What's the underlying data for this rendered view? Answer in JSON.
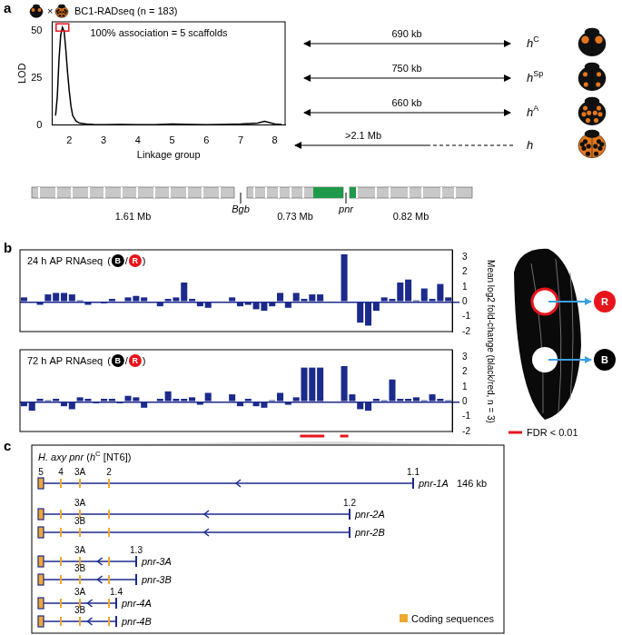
{
  "panel_labels": [
    "a",
    "b",
    "c"
  ],
  "chart_data": [
    {
      "type": "line",
      "title": "BC1-RADseq (n = 183)",
      "cross": "×",
      "annotation": "100% association = 5 scaffolds",
      "x_label": "Linkage group",
      "y_label": "LOD",
      "x": [
        1.6,
        1.65,
        1.7,
        1.75,
        1.8,
        1.85,
        1.9,
        1.95,
        2.0,
        2.05,
        2.1,
        2.2,
        2.3,
        2.5,
        2.7,
        3.0,
        3.5,
        4.0,
        4.5,
        5.0,
        5.5,
        6.0,
        6.5,
        7.0,
        7.5,
        7.7,
        8.0,
        8.2
      ],
      "values": [
        5,
        15,
        35,
        48,
        52,
        50,
        40,
        28,
        18,
        10,
        5,
        2,
        1,
        0.5,
        0.3,
        0.2,
        0.3,
        0.2,
        0.2,
        0.5,
        0.3,
        0.2,
        0.3,
        0.5,
        1,
        2,
        0.5,
        0.3
      ],
      "color": "#000000",
      "xlim": [
        1.5,
        8.3
      ],
      "xticks": [
        2,
        3,
        4,
        5,
        6,
        7,
        8
      ],
      "ylim": [
        0,
        55
      ],
      "yticks": [
        0,
        25,
        50
      ],
      "grid": false
    },
    {
      "type": "bar",
      "title": "24 h AP RNAseq",
      "categories": [
        null,
        null,
        null,
        null,
        null,
        null,
        null,
        null,
        null,
        null,
        null,
        null,
        null,
        null,
        null,
        null,
        null,
        null,
        null,
        null,
        null,
        null,
        null,
        null,
        null,
        null,
        null,
        null,
        null,
        null,
        null,
        null,
        null,
        null,
        null,
        null,
        null,
        null,
        null,
        null,
        null,
        null,
        null,
        null,
        null,
        null,
        null,
        null,
        null,
        null,
        null,
        null,
        null,
        null
      ],
      "values": [
        0.3,
        0,
        -0.2,
        0.5,
        0.6,
        0.6,
        0.5,
        0.1,
        -0.2,
        0,
        -0.1,
        0.2,
        0,
        0.3,
        0.4,
        0.3,
        0,
        -0.3,
        0.2,
        0.3,
        1.3,
        0.2,
        -0.3,
        -0.4,
        null,
        null,
        0.3,
        -0.3,
        -0.2,
        -0.5,
        -0.6,
        -0.3,
        0.6,
        -0.4,
        0.6,
        0.2,
        0.5,
        0.5,
        null,
        null,
        3.2,
        0,
        -1.4,
        -1.6,
        -0.6,
        0.3,
        0.2,
        1.3,
        1.5,
        0.1,
        0.9,
        0.2,
        1.2,
        0.3
      ],
      "color": "#1c2a8c",
      "ylim": [
        -2,
        3.5
      ],
      "yticks": [
        -2,
        -1,
        0,
        1,
        2,
        3
      ],
      "grid": false,
      "tick_labels": "y"
    },
    {
      "type": "bar",
      "title": "72 h AP RNAseq",
      "categories": [
        null,
        null,
        null,
        null,
        null,
        null,
        null,
        null,
        null,
        null,
        null,
        null,
        null,
        null,
        null,
        null,
        null,
        null,
        null,
        null,
        null,
        null,
        null,
        null,
        null,
        null,
        null,
        null,
        null,
        null,
        null,
        null,
        null,
        null,
        null,
        null,
        null,
        null,
        null,
        null,
        null,
        null,
        null,
        null,
        null,
        null,
        null,
        null,
        null,
        null,
        null,
        null,
        null,
        null
      ],
      "values": [
        -0.3,
        -0.6,
        0.2,
        0.1,
        0.2,
        -0.3,
        -0.5,
        0.3,
        0.2,
        -0.1,
        0.2,
        0.2,
        -0.1,
        0.4,
        0.3,
        -0.4,
        0,
        0.2,
        0.7,
        0.2,
        0.2,
        0.3,
        -0.2,
        0.6,
        null,
        null,
        0.5,
        -0.3,
        0.2,
        -0.3,
        -0.4,
        0.1,
        0.6,
        -0.2,
        0.3,
        2.3,
        2.3,
        2.3,
        null,
        null,
        2.4,
        0.5,
        -0.5,
        -0.6,
        0.2,
        0.1,
        1.5,
        0.2,
        0.2,
        0.3,
        0.1,
        0.5,
        0.2,
        0.1
      ],
      "fdr_significant": [
        35,
        36,
        37,
        40
      ],
      "color": "#1c2a8c",
      "ylim": [
        -2,
        3.5
      ],
      "yticks": [
        -2,
        -1,
        0,
        1,
        2,
        3
      ],
      "grid": false,
      "tick_labels": "y"
    }
  ],
  "rnaseq": {
    "comparison": [
      {
        "text": "("
      },
      {
        "text": "B",
        "color": "#000000"
      },
      {
        "text": "/"
      },
      {
        "text": "R",
        "color": "#e8141b"
      },
      {
        "text": ")"
      }
    ],
    "y_label": "Mean log2 fold-change (black/red, n = 3)",
    "fdr": {
      "label": "FDR < 0.01",
      "color": "#e8141b"
    }
  },
  "mapping": {
    "alleles": [
      {
        "base": "h",
        "sup": "C",
        "interval": "690 kb"
      },
      {
        "base": "h",
        "sup": "Sp",
        "interval": "750 kb"
      },
      {
        "base": "h",
        "sup": "A",
        "interval": "660 kb"
      },
      {
        "base": "h",
        "interval": ">2.1 Mb"
      }
    ],
    "scaffolds": [
      "1.61 Mb",
      "0.73 Mb",
      "0.82 Mb"
    ],
    "genes": [
      "Bgb",
      "pnr"
    ]
  },
  "gene_structure": {
    "title_parts": [
      {
        "text": "H. axy pnr",
        "italic": true
      },
      {
        "text": " ("
      },
      {
        "text": "h",
        "italic": true
      },
      {
        "text": "C",
        "sup": true
      },
      {
        "text": " [NT6])"
      }
    ],
    "length": "146 kb",
    "exons": [
      "5",
      "4",
      "3A",
      "3B",
      "2",
      "1.4",
      "1.3",
      "1.2",
      "1.1"
    ],
    "transcripts": [
      {
        "name": "pnr-1A",
        "exons": [
          "5",
          "4",
          "3A",
          "2",
          "1.1"
        ],
        "labels": [
          "5",
          "4",
          "3A",
          "2",
          "1.1"
        ]
      },
      {
        "name": "pnr-2A",
        "exons": [
          "5",
          "4",
          "3A",
          "2",
          "1.2"
        ],
        "labels": [
          "3A",
          "1.2"
        ]
      },
      {
        "name": "pnr-2B",
        "exons": [
          "5",
          "4",
          "3B",
          "2",
          "1.2"
        ],
        "labels": [
          "3B"
        ]
      },
      {
        "name": "pnr-3A",
        "exons": [
          "5",
          "4",
          "3A",
          "2",
          "1.3"
        ],
        "labels": [
          "3A",
          "1.3"
        ]
      },
      {
        "name": "pnr-3B",
        "exons": [
          "5",
          "4",
          "3B",
          "2",
          "1.3"
        ],
        "labels": [
          "3B"
        ]
      },
      {
        "name": "pnr-4A",
        "exons": [
          "5",
          "4",
          "3A",
          "2",
          "1.4"
        ],
        "labels": [
          "3A",
          "1.4"
        ]
      },
      {
        "name": "pnr-4B",
        "exons": [
          "5",
          "4",
          "3B",
          "2",
          "1.4"
        ],
        "labels": [
          "3B"
        ]
      }
    ],
    "legend": {
      "label": "Coding sequences",
      "color": "#f0a830"
    }
  }
}
